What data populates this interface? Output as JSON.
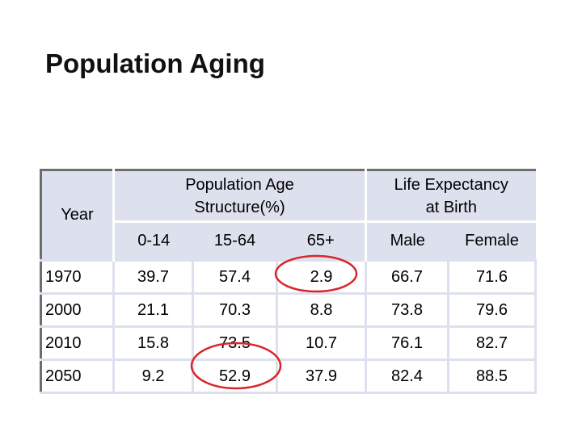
{
  "title": "Population Aging",
  "table": {
    "year_header": "Year",
    "group_headers": {
      "age_structure": "Population Age Structure(%)",
      "life_expectancy": "Life Expectancy at Birth"
    },
    "sub_headers": [
      "0-14",
      "15-64",
      "65+",
      "Male",
      "Female"
    ],
    "rows": [
      {
        "year": "1970",
        "a014": "39.7",
        "a1564": "57.4",
        "a65": "2.9",
        "male": "66.7",
        "female": "71.6"
      },
      {
        "year": "2000",
        "a014": "21.1",
        "a1564": "70.3",
        "a65": "8.8",
        "male": "73.8",
        "female": "79.6"
      },
      {
        "year": "2010",
        "a014": "15.8",
        "a1564": "73.5",
        "a65": "10.7",
        "male": "76.1",
        "female": "82.7"
      },
      {
        "year": "2050",
        "a014": "9.2",
        "a1564": "52.9",
        "a65": "37.9",
        "male": "82.4",
        "female": "88.5"
      }
    ]
  },
  "annotations": {
    "circle_color": "#d9262c"
  }
}
